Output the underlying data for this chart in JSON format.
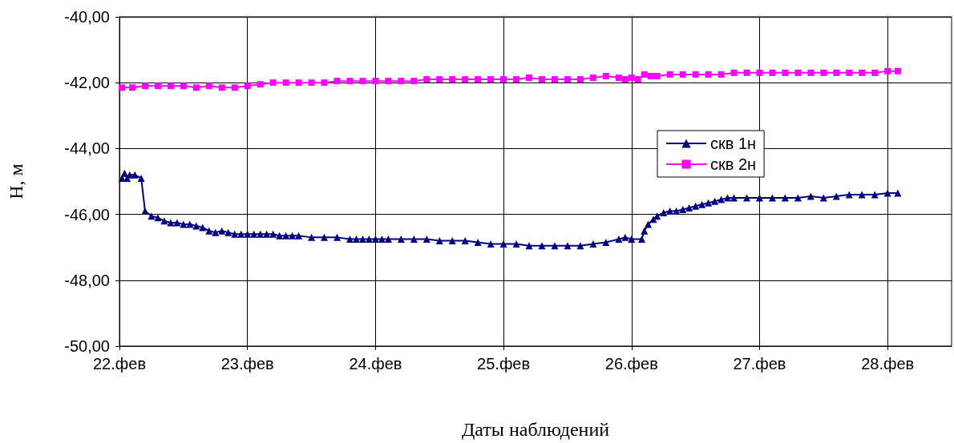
{
  "chart_data": {
    "type": "line",
    "xlabel": "Даты наблюдений",
    "ylabel": "H, м",
    "xlim": [
      22,
      28.5
    ],
    "xticks": [
      {
        "value": 22,
        "label": "22.фев"
      },
      {
        "value": 23,
        "label": "23.фев"
      },
      {
        "value": 24,
        "label": "24.фев"
      },
      {
        "value": 25,
        "label": "25.фев"
      },
      {
        "value": 26,
        "label": "26.фев"
      },
      {
        "value": 27,
        "label": "27.фев"
      },
      {
        "value": 28,
        "label": "28.фев"
      }
    ],
    "ylim": [
      -50,
      -40
    ],
    "yticks": [
      {
        "value": -50,
        "label": "-50,00"
      },
      {
        "value": -48,
        "label": "-48,00"
      },
      {
        "value": -46,
        "label": "-46,00"
      },
      {
        "value": -44,
        "label": "-44,00"
      },
      {
        "value": -42,
        "label": "-42,00"
      },
      {
        "value": -40,
        "label": "-40,00"
      }
    ],
    "grid": true,
    "legend": "right",
    "line_style": "solid",
    "series": [
      {
        "name": "скв 1н",
        "color": "#000080",
        "marker": "triangle",
        "x": [
          22.02,
          22.04,
          22.06,
          22.08,
          22.12,
          22.17,
          22.2,
          22.25,
          22.3,
          22.35,
          22.4,
          22.45,
          22.5,
          22.55,
          22.6,
          22.65,
          22.7,
          22.75,
          22.8,
          22.85,
          22.9,
          22.95,
          23.0,
          23.05,
          23.1,
          23.15,
          23.2,
          23.25,
          23.3,
          23.35,
          23.4,
          23.5,
          23.6,
          23.7,
          23.8,
          23.85,
          23.9,
          23.95,
          24.0,
          24.05,
          24.1,
          24.2,
          24.3,
          24.4,
          24.5,
          24.6,
          24.7,
          24.8,
          24.9,
          25.0,
          25.1,
          25.2,
          25.3,
          25.4,
          25.5,
          25.6,
          25.7,
          25.8,
          25.9,
          25.95,
          26.0,
          26.08,
          26.1,
          26.13,
          26.17,
          26.2,
          26.25,
          26.3,
          26.35,
          26.4,
          26.45,
          26.5,
          26.55,
          26.6,
          26.65,
          26.7,
          26.75,
          26.8,
          26.9,
          27.0,
          27.1,
          27.2,
          27.3,
          27.4,
          27.5,
          27.6,
          27.7,
          27.8,
          27.9,
          28.0,
          28.08
        ],
        "values": [
          -44.9,
          -44.75,
          -44.9,
          -44.8,
          -44.8,
          -44.9,
          -45.9,
          -46.05,
          -46.1,
          -46.2,
          -46.25,
          -46.25,
          -46.3,
          -46.3,
          -46.35,
          -46.4,
          -46.5,
          -46.55,
          -46.5,
          -46.55,
          -46.6,
          -46.6,
          -46.6,
          -46.6,
          -46.6,
          -46.6,
          -46.6,
          -46.65,
          -46.65,
          -46.65,
          -46.65,
          -46.7,
          -46.7,
          -46.7,
          -46.75,
          -46.75,
          -46.75,
          -46.75,
          -46.75,
          -46.75,
          -46.75,
          -46.75,
          -46.75,
          -46.75,
          -46.8,
          -46.8,
          -46.8,
          -46.85,
          -46.9,
          -46.9,
          -46.9,
          -46.95,
          -46.95,
          -46.95,
          -46.95,
          -46.95,
          -46.9,
          -46.85,
          -46.75,
          -46.7,
          -46.75,
          -46.75,
          -46.5,
          -46.3,
          -46.15,
          -46.05,
          -45.95,
          -45.9,
          -45.9,
          -45.85,
          -45.8,
          -45.75,
          -45.7,
          -45.65,
          -45.6,
          -45.55,
          -45.5,
          -45.5,
          -45.5,
          -45.5,
          -45.5,
          -45.5,
          -45.5,
          -45.45,
          -45.5,
          -45.45,
          -45.4,
          -45.4,
          -45.4,
          -45.35,
          -45.35
        ]
      },
      {
        "name": "скв 2н",
        "color": "#ff00ff",
        "marker": "square",
        "x": [
          22.02,
          22.1,
          22.2,
          22.3,
          22.4,
          22.5,
          22.6,
          22.7,
          22.8,
          22.9,
          23.0,
          23.1,
          23.2,
          23.3,
          23.4,
          23.5,
          23.6,
          23.7,
          23.8,
          23.9,
          24.0,
          24.1,
          24.2,
          24.3,
          24.4,
          24.5,
          24.6,
          24.7,
          24.8,
          24.9,
          25.0,
          25.1,
          25.2,
          25.3,
          25.4,
          25.5,
          25.6,
          25.7,
          25.8,
          25.9,
          25.95,
          26.0,
          26.05,
          26.1,
          26.15,
          26.2,
          26.3,
          26.4,
          26.5,
          26.6,
          26.7,
          26.8,
          26.9,
          27.0,
          27.1,
          27.2,
          27.3,
          27.4,
          27.5,
          27.6,
          27.7,
          27.8,
          27.9,
          28.0,
          28.08
        ],
        "values": [
          -42.15,
          -42.15,
          -42.1,
          -42.1,
          -42.1,
          -42.1,
          -42.15,
          -42.1,
          -42.15,
          -42.15,
          -42.1,
          -42.05,
          -42.0,
          -42.0,
          -42.0,
          -42.0,
          -42.0,
          -41.95,
          -41.95,
          -41.95,
          -41.95,
          -41.95,
          -41.95,
          -41.95,
          -41.9,
          -41.9,
          -41.9,
          -41.9,
          -41.9,
          -41.9,
          -41.9,
          -41.9,
          -41.85,
          -41.9,
          -41.9,
          -41.9,
          -41.9,
          -41.85,
          -41.8,
          -41.85,
          -41.9,
          -41.85,
          -41.9,
          -41.75,
          -41.8,
          -41.8,
          -41.75,
          -41.75,
          -41.75,
          -41.75,
          -41.75,
          -41.7,
          -41.7,
          -41.7,
          -41.7,
          -41.7,
          -41.7,
          -41.7,
          -41.7,
          -41.7,
          -41.7,
          -41.7,
          -41.7,
          -41.65,
          -41.65
        ]
      }
    ]
  }
}
